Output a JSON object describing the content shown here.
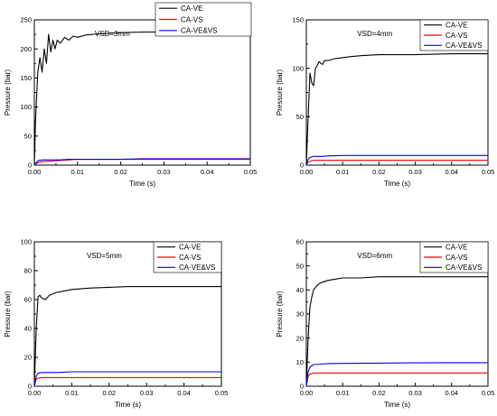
{
  "colors": {
    "CA-VE": "#000000",
    "CA-VS": "#ff0000",
    "CA-VE&VS": "#0000ff",
    "axis": "#000000",
    "background": "#ffffff"
  },
  "chart_data": [
    {
      "type": "line",
      "annotation": "VSD=3mm",
      "xlabel": "Time (s)",
      "ylabel": "Pressure (bar)",
      "xlim": [
        0,
        0.05
      ],
      "ylim": [
        0,
        250
      ],
      "xticks": [
        "0.00",
        "0.01",
        "0.02",
        "0.03",
        "0.04",
        "0.05"
      ],
      "yticks": [
        "0",
        "50",
        "100",
        "150",
        "200",
        "250"
      ],
      "grid": false,
      "legend": "top-right",
      "series": [
        {
          "name": "CA-VE",
          "x": [
            0,
            0.0003,
            0.0008,
            0.0013,
            0.0018,
            0.0023,
            0.0028,
            0.0033,
            0.0038,
            0.0043,
            0.0048,
            0.0053,
            0.006,
            0.007,
            0.008,
            0.009,
            0.01,
            0.012,
            0.015,
            0.02,
            0.025,
            0.03,
            0.04,
            0.05
          ],
          "y": [
            0,
            80,
            160,
            185,
            160,
            200,
            175,
            225,
            195,
            215,
            200,
            215,
            210,
            220,
            215,
            222,
            220,
            224,
            226,
            228,
            229,
            229,
            229,
            229
          ]
        },
        {
          "name": "CA-VS",
          "x": [
            0,
            0.0005,
            0.001,
            0.002,
            0.004,
            0.006,
            0.008,
            0.01,
            0.015,
            0.02,
            0.025,
            0.03,
            0.04,
            0.05
          ],
          "y": [
            0,
            3,
            5,
            6,
            7,
            8,
            9,
            10,
            10,
            10,
            10,
            10,
            10,
            10
          ]
        },
        {
          "name": "CA-VE&VS",
          "x": [
            0,
            0.0005,
            0.001,
            0.002,
            0.004,
            0.006,
            0.008,
            0.01,
            0.015,
            0.02,
            0.025,
            0.03,
            0.04,
            0.05
          ],
          "y": [
            0,
            5,
            8,
            9,
            9,
            9,
            10,
            10,
            10,
            10,
            11,
            11,
            11,
            11
          ]
        }
      ]
    },
    {
      "type": "line",
      "annotation": "VSD=4mm",
      "xlabel": "Time (s)",
      "ylabel": "Pressure (bar)",
      "xlim": [
        0,
        0.05
      ],
      "ylim": [
        0,
        150
      ],
      "xticks": [
        "0.00",
        "0.01",
        "0.02",
        "0.03",
        "0.04",
        "0.05"
      ],
      "yticks": [
        "0",
        "50",
        "100",
        "150"
      ],
      "grid": false,
      "legend": "top-right",
      "series": [
        {
          "name": "CA-VE",
          "x": [
            0,
            0.0004,
            0.001,
            0.0015,
            0.002,
            0.0025,
            0.003,
            0.0035,
            0.004,
            0.0045,
            0.005,
            0.006,
            0.007,
            0.008,
            0.01,
            0.012,
            0.015,
            0.02,
            0.025,
            0.03,
            0.04,
            0.05
          ],
          "y": [
            0,
            40,
            95,
            85,
            82,
            100,
            103,
            107,
            105,
            104,
            108,
            108,
            109,
            110,
            111,
            112,
            113,
            114,
            114,
            114,
            115,
            115
          ]
        },
        {
          "name": "CA-VS",
          "x": [
            0,
            0.0005,
            0.001,
            0.002,
            0.004,
            0.006,
            0.01,
            0.02,
            0.03,
            0.04,
            0.05
          ],
          "y": [
            0,
            3,
            4,
            5,
            5,
            5,
            5,
            5,
            5,
            5,
            5
          ]
        },
        {
          "name": "CA-VE&VS",
          "x": [
            0,
            0.0005,
            0.001,
            0.002,
            0.004,
            0.006,
            0.01,
            0.02,
            0.03,
            0.04,
            0.05
          ],
          "y": [
            0,
            6,
            8,
            9,
            9,
            9.5,
            10,
            10,
            10,
            10,
            10
          ]
        }
      ]
    },
    {
      "type": "line",
      "annotation": "VSD=5mm",
      "xlabel": "Time (s)",
      "ylabel": "Pressure (bar)",
      "xlim": [
        0,
        0.05
      ],
      "ylim": [
        0,
        100
      ],
      "xticks": [
        "0.00",
        "0.01",
        "0.02",
        "0.03",
        "0.04",
        "0.05"
      ],
      "yticks": [
        "0",
        "20",
        "40",
        "60",
        "80",
        "100"
      ],
      "grid": false,
      "legend": "top-right",
      "series": [
        {
          "name": "CA-VE",
          "x": [
            0,
            0.0005,
            0.001,
            0.0015,
            0.002,
            0.003,
            0.004,
            0.005,
            0.006,
            0.008,
            0.01,
            0.015,
            0.02,
            0.025,
            0.03,
            0.04,
            0.05
          ],
          "y": [
            0,
            40,
            62,
            63,
            61,
            60,
            63,
            64,
            65,
            66,
            67,
            68,
            68.5,
            69,
            69,
            69,
            69
          ]
        },
        {
          "name": "CA-VS",
          "x": [
            0,
            0.0005,
            0.001,
            0.002,
            0.004,
            0.01,
            0.02,
            0.03,
            0.04,
            0.05
          ],
          "y": [
            0,
            5,
            5.5,
            6,
            6,
            6,
            6,
            6,
            6,
            6
          ]
        },
        {
          "name": "CA-VE&VS",
          "x": [
            0,
            0.0005,
            0.001,
            0.002,
            0.004,
            0.006,
            0.01,
            0.02,
            0.03,
            0.04,
            0.05
          ],
          "y": [
            0,
            7,
            9,
            9.5,
            9.5,
            9.5,
            10,
            10,
            10,
            10,
            10
          ]
        }
      ]
    },
    {
      "type": "line",
      "annotation": "VSD=6mm",
      "xlabel": "Time (s)",
      "ylabel": "Pressure (bar)",
      "xlim": [
        0,
        0.05
      ],
      "ylim": [
        0,
        60
      ],
      "xticks": [
        "0.00",
        "0.01",
        "0.02",
        "0.03",
        "0.04",
        "0.05"
      ],
      "yticks": [
        "0",
        "10",
        "20",
        "30",
        "40",
        "50",
        "60"
      ],
      "grid": false,
      "legend": "top-right",
      "series": [
        {
          "name": "CA-VE",
          "x": [
            0,
            0.0005,
            0.001,
            0.0015,
            0.002,
            0.003,
            0.004,
            0.006,
            0.008,
            0.01,
            0.015,
            0.02,
            0.03,
            0.04,
            0.05
          ],
          "y": [
            0,
            20,
            33,
            37,
            40,
            42,
            43,
            44,
            44.5,
            45,
            45,
            45.5,
            45.5,
            45.5,
            45.5
          ]
        },
        {
          "name": "CA-VS",
          "x": [
            0,
            0.0005,
            0.001,
            0.002,
            0.004,
            0.01,
            0.02,
            0.03,
            0.04,
            0.05
          ],
          "y": [
            0,
            4,
            5,
            5.5,
            5.5,
            5.5,
            5.5,
            5.5,
            5.5,
            5.5
          ]
        },
        {
          "name": "CA-VE&VS",
          "x": [
            0,
            0.0005,
            0.001,
            0.002,
            0.004,
            0.006,
            0.01,
            0.02,
            0.03,
            0.04,
            0.05
          ],
          "y": [
            0,
            6,
            8,
            9,
            9.2,
            9.4,
            9.5,
            9.6,
            9.7,
            9.8,
            9.8
          ]
        }
      ]
    }
  ]
}
